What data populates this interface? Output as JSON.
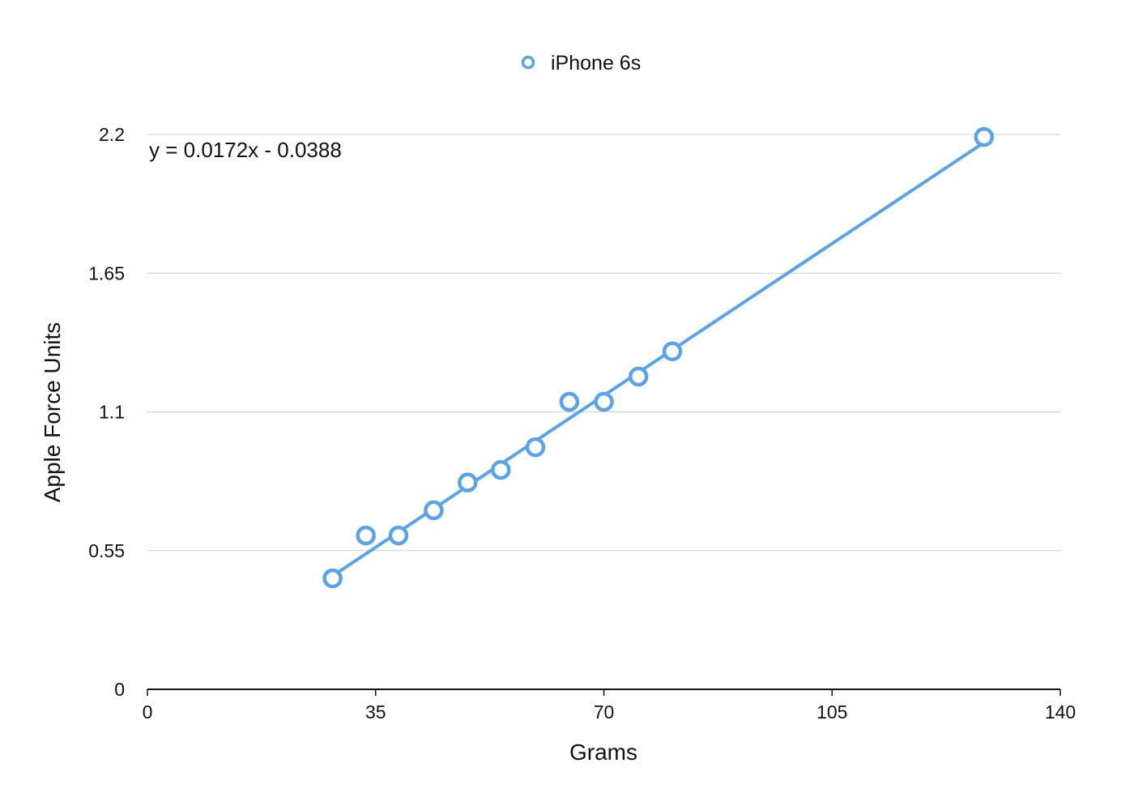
{
  "chart_data": {
    "type": "scatter",
    "xlabel": "Grams",
    "ylabel": "Apple Force Units",
    "xlim": [
      0,
      140
    ],
    "ylim": [
      0,
      2.2
    ],
    "x_ticks": [
      0,
      35,
      70,
      105,
      140
    ],
    "x_tick_labels": [
      "0",
      "35",
      "70",
      "105",
      "140"
    ],
    "y_ticks": [
      0,
      0.55,
      1.1,
      1.65,
      2.2
    ],
    "y_tick_labels": [
      "0",
      "0.55",
      "1.1",
      "1.65",
      "2.2"
    ],
    "grid": "horizontal",
    "legend": "top-center",
    "series": [
      {
        "name": "iPhone 6s",
        "color": "#5aa3ea",
        "marker": "open-circle",
        "points": [
          {
            "x": 28.4,
            "y": 0.44
          },
          {
            "x": 33.5,
            "y": 0.61
          },
          {
            "x": 38.5,
            "y": 0.61
          },
          {
            "x": 43.9,
            "y": 0.71
          },
          {
            "x": 49.1,
            "y": 0.82
          },
          {
            "x": 54.2,
            "y": 0.87
          },
          {
            "x": 59.5,
            "y": 0.96
          },
          {
            "x": 64.7,
            "y": 1.14
          },
          {
            "x": 70.0,
            "y": 1.14
          },
          {
            "x": 75.3,
            "y": 1.24
          },
          {
            "x": 80.5,
            "y": 1.34
          },
          {
            "x": 128.3,
            "y": 2.19
          }
        ],
        "trendline": {
          "type": "linear",
          "slope": 0.0172,
          "intercept": -0.0388,
          "x_range": [
            28.4,
            128.3
          ],
          "equation_label": "y = 0.0172x - 0.0388"
        }
      }
    ]
  }
}
